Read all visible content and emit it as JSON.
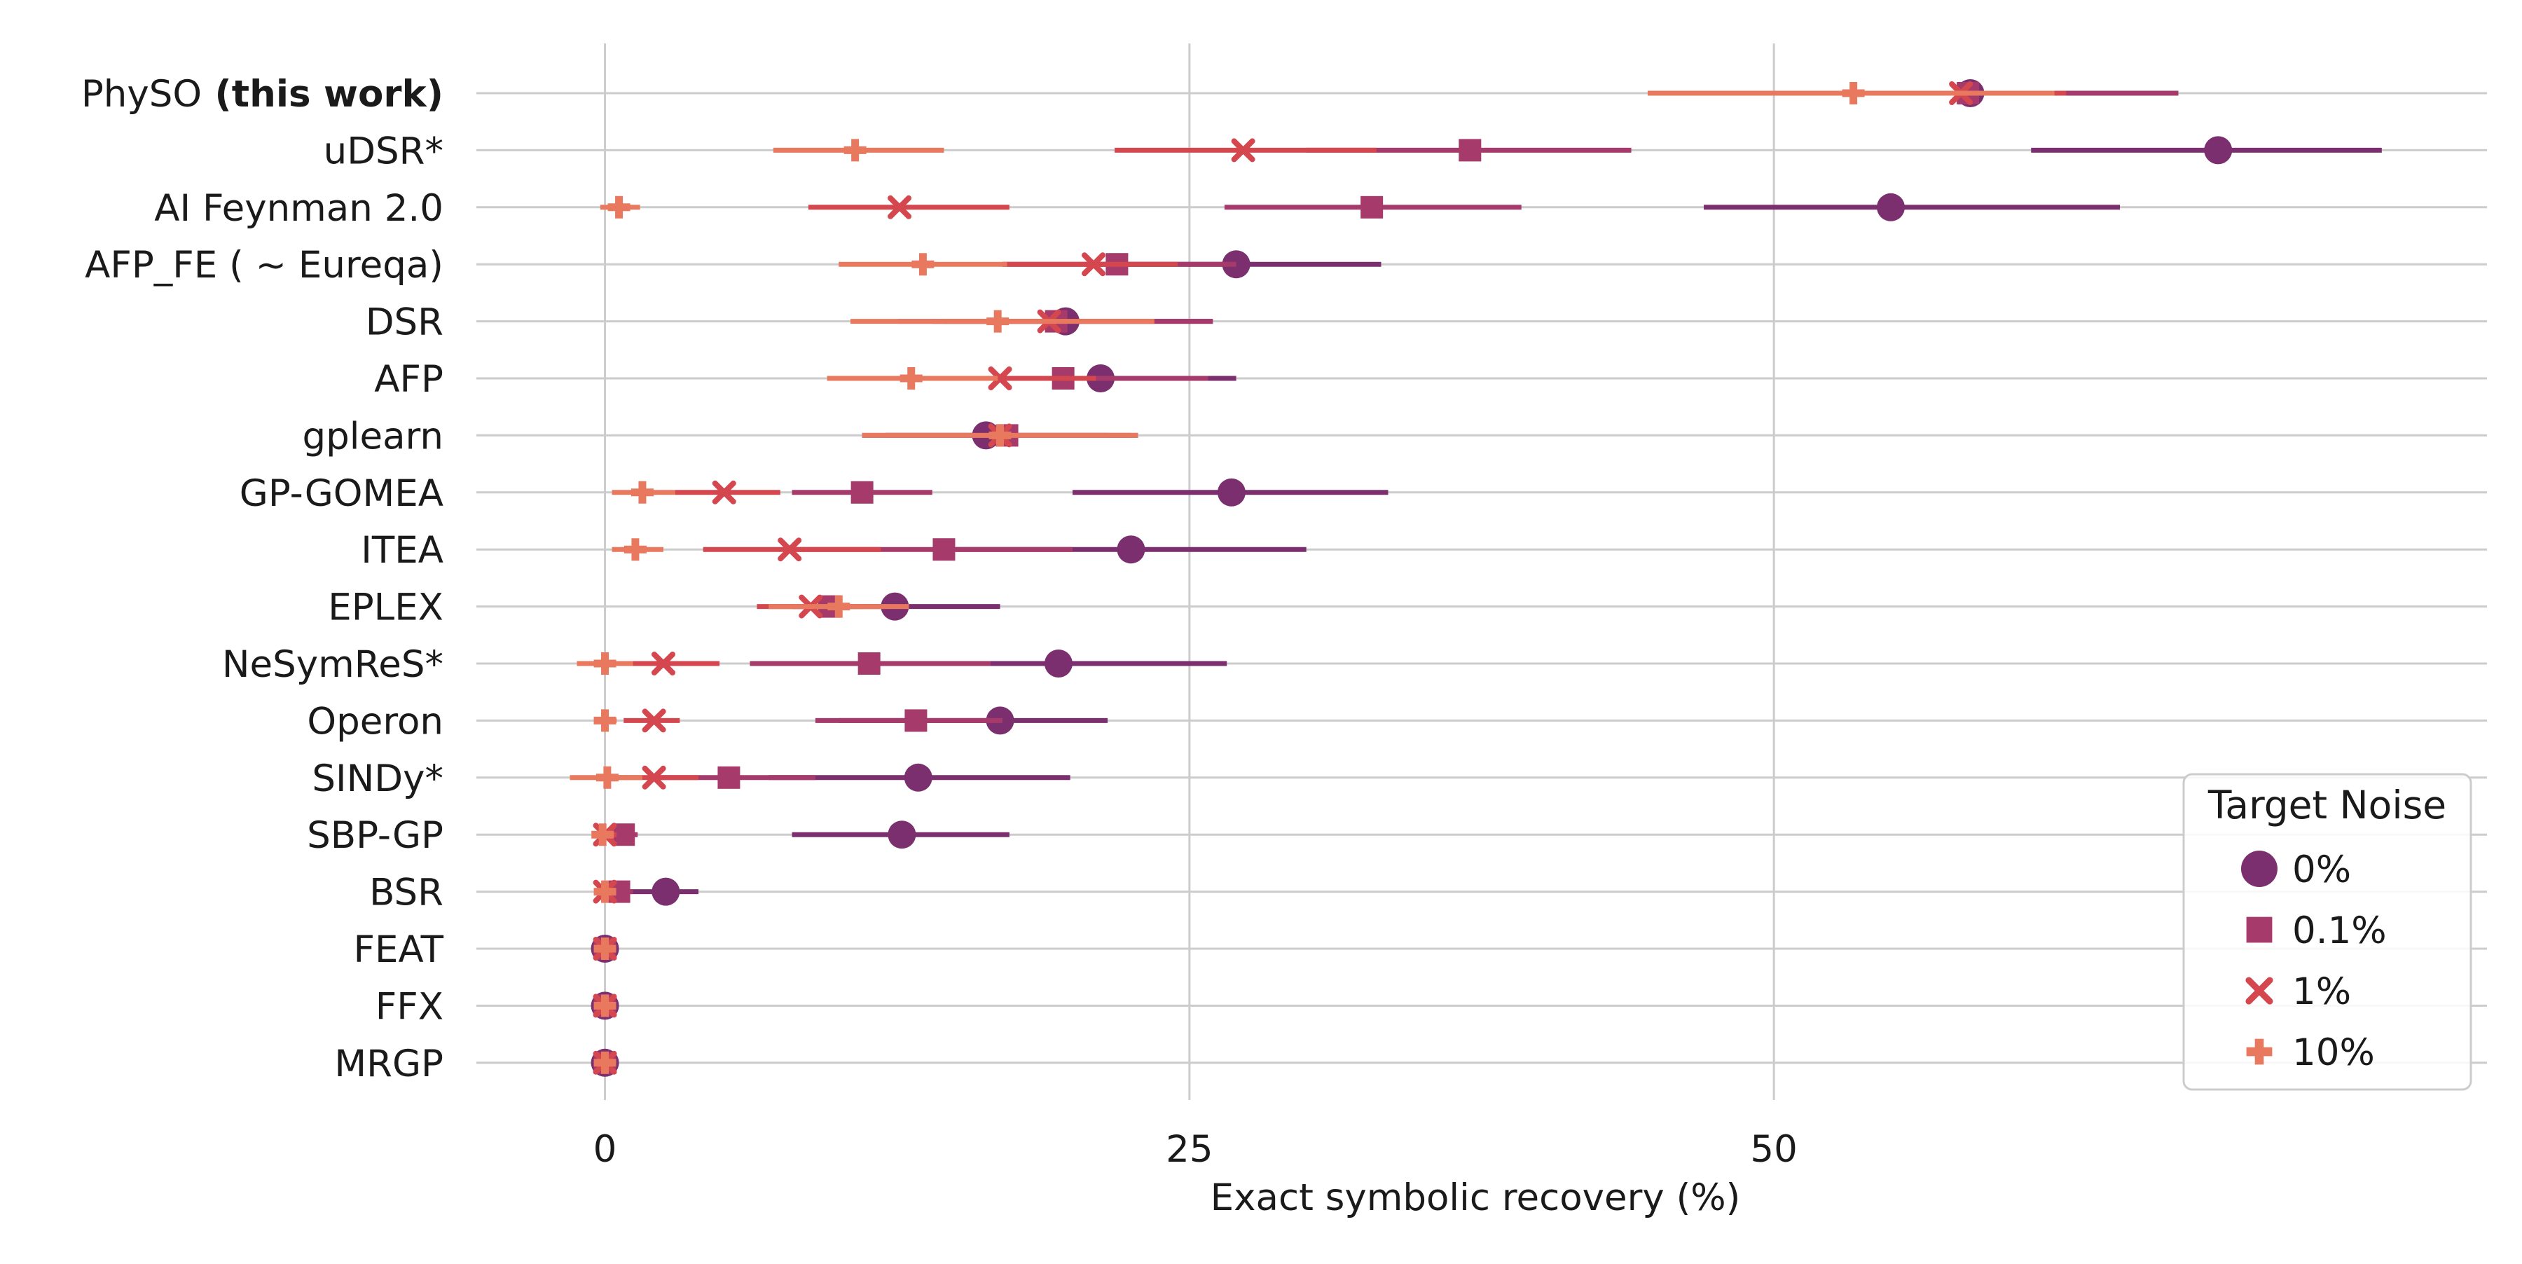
{
  "chart_data": {
    "type": "scatter",
    "xlabel": "Exact symbolic recovery (%)",
    "xlim": [
      -5.5,
      80.5
    ],
    "xticks": [
      0,
      25,
      50
    ],
    "grid": true,
    "legend": {
      "title": "Target Noise",
      "position": "lower-right",
      "entries": [
        {
          "label": "0%",
          "marker": "circle",
          "color": "#7b2f6e"
        },
        {
          "label": "0.1%",
          "marker": "square",
          "color": "#a63a6a"
        },
        {
          "label": "1%",
          "marker": "x",
          "color": "#d4474f"
        },
        {
          "label": "10%",
          "marker": "plus",
          "color": "#e8795f"
        }
      ]
    },
    "methods": [
      {
        "name": "PhySO",
        "name_suffix": " (this work)"
      },
      {
        "name": "uDSR*"
      },
      {
        "name": "AI Feynman 2.0"
      },
      {
        "name": "AFP_FE ( ~ Eureqa)"
      },
      {
        "name": "DSR"
      },
      {
        "name": "AFP"
      },
      {
        "name": "gplearn"
      },
      {
        "name": "GP-GOMEA"
      },
      {
        "name": "ITEA"
      },
      {
        "name": "EPLEX"
      },
      {
        "name": "NeSymReS*"
      },
      {
        "name": "Operon"
      },
      {
        "name": "SINDy*"
      },
      {
        "name": "SBP-GP"
      },
      {
        "name": "BSR"
      },
      {
        "name": "FEAT"
      },
      {
        "name": "FFX"
      },
      {
        "name": "MRGP"
      }
    ],
    "series": [
      {
        "name": "0%",
        "values": [
          [
            58.4,
            53.8,
            63.0
          ],
          [
            69.0,
            61.0,
            76.0
          ],
          [
            55.0,
            47.0,
            64.8
          ],
          [
            27.0,
            20.5,
            33.2
          ],
          [
            19.7,
            12.5,
            26.0
          ],
          [
            21.2,
            15.0,
            27.0
          ],
          [
            16.3,
            11.0,
            22.8
          ],
          [
            26.8,
            20.0,
            33.5
          ],
          [
            22.5,
            15.0,
            30.0
          ],
          [
            12.4,
            8.0,
            16.9
          ],
          [
            19.4,
            12.5,
            26.6
          ],
          [
            16.9,
            10.0,
            21.5
          ],
          [
            13.4,
            7.0,
            19.9
          ],
          [
            12.7,
            8.0,
            17.3
          ],
          [
            2.6,
            0.5,
            4.0
          ],
          [
            0.0,
            0.0,
            0.0
          ],
          [
            0.0,
            0.0,
            0.0
          ],
          [
            0.0,
            0.0,
            0.0
          ]
        ]
      },
      {
        "name": "0.1%",
        "values": [
          [
            58.3,
            53.0,
            67.3
          ],
          [
            37.0,
            30.0,
            43.9
          ],
          [
            32.8,
            26.5,
            39.2
          ],
          [
            21.9,
            17.0,
            27.0
          ],
          [
            19.3,
            14.0,
            26.0
          ],
          [
            19.6,
            15.0,
            25.8
          ],
          [
            17.2,
            12.0,
            22.5
          ],
          [
            11.0,
            8.0,
            14.0
          ],
          [
            14.5,
            8.0,
            20.0
          ],
          [
            9.6,
            7.0,
            12.2
          ],
          [
            11.3,
            6.2,
            16.5
          ],
          [
            13.3,
            9.0,
            17.0
          ],
          [
            5.3,
            2.0,
            9.0
          ],
          [
            0.8,
            0.0,
            1.4
          ],
          [
            0.6,
            0.0,
            1.2
          ],
          [
            0.0,
            0.0,
            0.0
          ],
          [
            0.0,
            0.0,
            0.0
          ],
          [
            0.0,
            0.0,
            0.0
          ]
        ]
      },
      {
        "name": "1%",
        "values": [
          [
            58.0,
            51.0,
            62.5
          ],
          [
            27.3,
            21.8,
            33.0
          ],
          [
            12.6,
            8.7,
            17.3
          ],
          [
            20.9,
            17.0,
            24.5
          ],
          [
            19.0,
            14.5,
            23.5
          ],
          [
            16.9,
            13.0,
            21.0
          ],
          [
            16.9,
            12.0,
            21.5
          ],
          [
            5.1,
            3.0,
            7.5
          ],
          [
            7.9,
            4.2,
            11.8
          ],
          [
            8.8,
            6.5,
            11.0
          ],
          [
            2.5,
            1.0,
            4.9
          ],
          [
            2.1,
            0.8,
            3.2
          ],
          [
            2.1,
            0.5,
            4.0
          ],
          [
            0.0,
            0.0,
            0.5
          ],
          [
            0.0,
            0.0,
            0.3
          ],
          [
            0.0,
            0.0,
            0.0
          ],
          [
            0.0,
            0.0,
            0.0
          ],
          [
            0.0,
            0.0,
            0.0
          ]
        ]
      },
      {
        "name": "10%",
        "values": [
          [
            53.4,
            44.6,
            62.0
          ],
          [
            10.7,
            7.2,
            14.5
          ],
          [
            0.6,
            -0.2,
            1.5
          ],
          [
            13.6,
            10.0,
            17.2
          ],
          [
            16.8,
            10.5,
            23.5
          ],
          [
            13.1,
            9.5,
            16.8
          ],
          [
            16.9,
            11.0,
            22.8
          ],
          [
            1.6,
            0.3,
            3.0
          ],
          [
            1.3,
            0.3,
            2.5
          ],
          [
            10.0,
            7.0,
            13.0
          ],
          [
            0.0,
            -1.2,
            1.2
          ],
          [
            0.0,
            -0.3,
            0.5
          ],
          [
            0.1,
            -1.5,
            1.6
          ],
          [
            -0.1,
            -0.3,
            0.3
          ],
          [
            0.0,
            -0.2,
            0.4
          ],
          [
            0.0,
            0.0,
            0.0
          ],
          [
            0.0,
            0.0,
            0.0
          ],
          [
            0.0,
            0.0,
            0.0
          ]
        ]
      }
    ]
  }
}
